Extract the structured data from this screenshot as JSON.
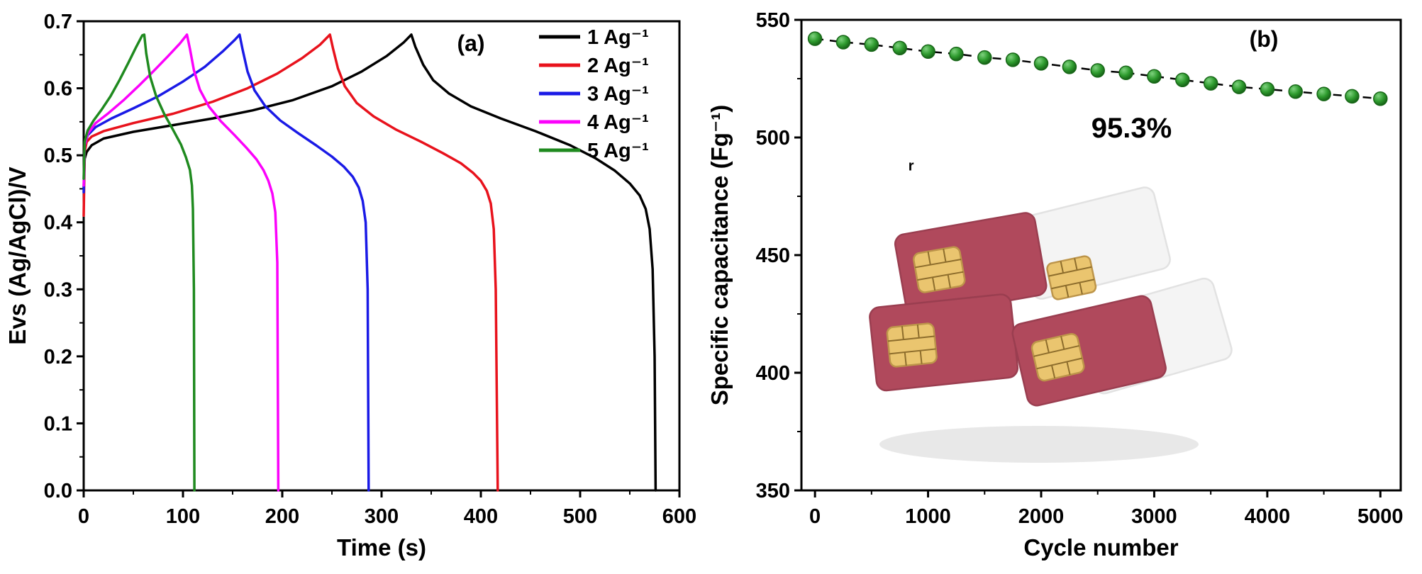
{
  "page": {
    "background": "#ffffff"
  },
  "chart_data": [
    {
      "type": "line",
      "panel_label": "(a)",
      "xlabel": "Time (s)",
      "ylabel": "Evs (Ag/AgCl)/V",
      "xlim": [
        0,
        600
      ],
      "ylim": [
        0.0,
        0.7
      ],
      "x_major_ticks": [
        0,
        100,
        200,
        300,
        400,
        500,
        600
      ],
      "x_minor_step": 50,
      "y_major_ticks": [
        0.0,
        0.1,
        0.2,
        0.3,
        0.4,
        0.5,
        0.6,
        0.7
      ],
      "y_minor_step": 0.05,
      "y_tick_decimals": 1,
      "grid": false,
      "legend_position": "top-right-inside",
      "series": [
        {
          "name": "1 Ag⁻¹",
          "color": "#000000",
          "points": [
            [
              0,
              0.45
            ],
            [
              1,
              0.495
            ],
            [
              3,
              0.505
            ],
            [
              8,
              0.515
            ],
            [
              20,
              0.525
            ],
            [
              50,
              0.535
            ],
            [
              90,
              0.545
            ],
            [
              130,
              0.555
            ],
            [
              170,
              0.567
            ],
            [
              210,
              0.582
            ],
            [
              250,
              0.603
            ],
            [
              280,
              0.625
            ],
            [
              305,
              0.648
            ],
            [
              322,
              0.668
            ],
            [
              330,
              0.68
            ],
            [
              334,
              0.662
            ],
            [
              342,
              0.635
            ],
            [
              352,
              0.612
            ],
            [
              368,
              0.592
            ],
            [
              390,
              0.573
            ],
            [
              420,
              0.555
            ],
            [
              455,
              0.536
            ],
            [
              490,
              0.515
            ],
            [
              515,
              0.496
            ],
            [
              535,
              0.477
            ],
            [
              550,
              0.458
            ],
            [
              560,
              0.44
            ],
            [
              566,
              0.42
            ],
            [
              570,
              0.39
            ],
            [
              573,
              0.33
            ],
            [
              575,
              0.2
            ],
            [
              576,
              0.0
            ]
          ]
        },
        {
          "name": "2 Ag⁻¹",
          "color": "#e8121c",
          "points": [
            [
              0,
              0.41
            ],
            [
              1,
              0.505
            ],
            [
              3,
              0.52
            ],
            [
              8,
              0.528
            ],
            [
              20,
              0.536
            ],
            [
              50,
              0.548
            ],
            [
              90,
              0.562
            ],
            [
              130,
              0.58
            ],
            [
              165,
              0.6
            ],
            [
              195,
              0.622
            ],
            [
              220,
              0.645
            ],
            [
              238,
              0.665
            ],
            [
              248,
              0.68
            ],
            [
              251,
              0.66
            ],
            [
              256,
              0.63
            ],
            [
              263,
              0.603
            ],
            [
              275,
              0.578
            ],
            [
              292,
              0.558
            ],
            [
              315,
              0.538
            ],
            [
              340,
              0.52
            ],
            [
              362,
              0.503
            ],
            [
              380,
              0.488
            ],
            [
              392,
              0.474
            ],
            [
              400,
              0.462
            ],
            [
              406,
              0.447
            ],
            [
              410,
              0.428
            ],
            [
              413,
              0.39
            ],
            [
              415,
              0.3
            ],
            [
              416,
              0.15
            ],
            [
              417,
              0.0
            ]
          ]
        },
        {
          "name": "3 Ag⁻¹",
          "color": "#1a1ae6",
          "points": [
            [
              0,
              0.445
            ],
            [
              1,
              0.515
            ],
            [
              4,
              0.53
            ],
            [
              12,
              0.542
            ],
            [
              28,
              0.555
            ],
            [
              50,
              0.57
            ],
            [
              75,
              0.588
            ],
            [
              100,
              0.61
            ],
            [
              122,
              0.632
            ],
            [
              140,
              0.655
            ],
            [
              152,
              0.672
            ],
            [
              157,
              0.68
            ],
            [
              160,
              0.658
            ],
            [
              165,
              0.625
            ],
            [
              172,
              0.597
            ],
            [
              183,
              0.573
            ],
            [
              198,
              0.552
            ],
            [
              216,
              0.533
            ],
            [
              234,
              0.515
            ],
            [
              250,
              0.498
            ],
            [
              262,
              0.483
            ],
            [
              271,
              0.468
            ],
            [
              277,
              0.452
            ],
            [
              281,
              0.432
            ],
            [
              284,
              0.4
            ],
            [
              286,
              0.3
            ],
            [
              287,
              0.0
            ]
          ]
        },
        {
          "name": "4 Ag⁻¹",
          "color": "#fb02fb",
          "points": [
            [
              0,
              0.455
            ],
            [
              1,
              0.515
            ],
            [
              4,
              0.532
            ],
            [
              12,
              0.548
            ],
            [
              25,
              0.563
            ],
            [
              40,
              0.582
            ],
            [
              55,
              0.603
            ],
            [
              70,
              0.625
            ],
            [
              85,
              0.648
            ],
            [
              97,
              0.667
            ],
            [
              104,
              0.68
            ],
            [
              107,
              0.659
            ],
            [
              111,
              0.627
            ],
            [
              117,
              0.598
            ],
            [
              126,
              0.573
            ],
            [
              138,
              0.551
            ],
            [
              152,
              0.53
            ],
            [
              164,
              0.511
            ],
            [
              174,
              0.494
            ],
            [
              181,
              0.478
            ],
            [
              186,
              0.462
            ],
            [
              190,
              0.443
            ],
            [
              193,
              0.415
            ],
            [
              195,
              0.34
            ],
            [
              196,
              0.0
            ]
          ]
        },
        {
          "name": "5 Ag⁻¹",
          "color": "#1f8a1f",
          "points": [
            [
              0,
              0.465
            ],
            [
              1,
              0.52
            ],
            [
              4,
              0.537
            ],
            [
              10,
              0.552
            ],
            [
              18,
              0.568
            ],
            [
              27,
              0.588
            ],
            [
              36,
              0.612
            ],
            [
              45,
              0.638
            ],
            [
              53,
              0.662
            ],
            [
              59,
              0.679
            ],
            [
              61,
              0.68
            ],
            [
              63,
              0.652
            ],
            [
              67,
              0.617
            ],
            [
              73,
              0.588
            ],
            [
              81,
              0.562
            ],
            [
              90,
              0.538
            ],
            [
              98,
              0.516
            ],
            [
              103,
              0.497
            ],
            [
              107,
              0.478
            ],
            [
              109,
              0.455
            ],
            [
              110,
              0.42
            ],
            [
              111,
              0.3
            ],
            [
              111.5,
              0.0
            ]
          ]
        }
      ]
    },
    {
      "type": "scatter",
      "panel_label": "(b)",
      "xlabel": "Cycle number",
      "ylabel": "Specific capacitance (Fg⁻¹)",
      "xlim": [
        0,
        5000
      ],
      "ylim": [
        350,
        550
      ],
      "x_major_ticks": [
        0,
        1000,
        2000,
        3000,
        4000,
        5000
      ],
      "x_minor_step": 500,
      "y_major_ticks": [
        350,
        400,
        450,
        500,
        550
      ],
      "y_minor_step": 25,
      "y_tick_decimals": 0,
      "grid": false,
      "marker": {
        "shape": "sphere",
        "color": "#2e9b2e",
        "edge": "#176617",
        "highlight": "#7fd27f",
        "dark": "#145c14"
      },
      "line": {
        "style": "dashed",
        "color": "#000000"
      },
      "annotations": [
        {
          "text": "95.3%",
          "color": "#2e86c8",
          "x": 2800,
          "y": 500,
          "size": 40
        },
        {
          "text": "r",
          "color": "#ff2a2a",
          "x": 850,
          "y": 486,
          "size": 20
        }
      ],
      "inset_image": "sim-cards-illustration",
      "inset_colors": {
        "card": "#b0495c",
        "card_edge": "#9a3e50",
        "chip": "#eac56f",
        "chip_edge": "#bd954a",
        "chip_lines": "#8d6d2c",
        "white_card": "#f4f4f4",
        "white_card_edge": "#e2e2e2",
        "shadow": "#dcdcdc"
      },
      "series": [
        {
          "name": "Specific capacitance",
          "x": [
            0,
            250,
            500,
            750,
            1000,
            1250,
            1500,
            1750,
            2000,
            2250,
            2500,
            2750,
            3000,
            3250,
            3500,
            3750,
            4000,
            4250,
            4500,
            4750,
            5000
          ],
          "y": [
            542,
            540.5,
            539.5,
            538,
            536.5,
            535.5,
            534,
            533,
            531.5,
            530,
            528.5,
            527.5,
            526,
            524.5,
            523,
            521.5,
            520.5,
            519.5,
            518.5,
            517.5,
            516.5
          ]
        }
      ]
    }
  ]
}
